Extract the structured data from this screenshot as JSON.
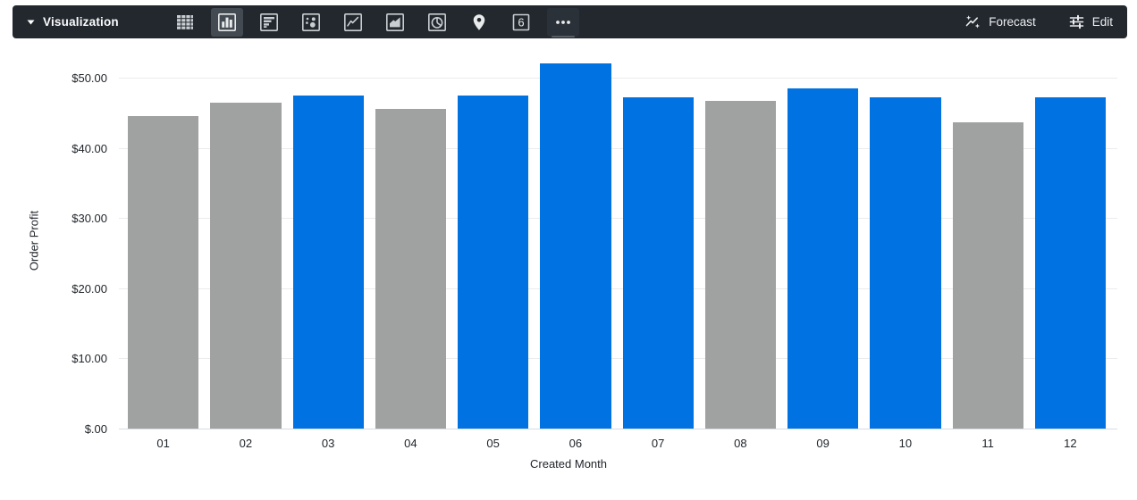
{
  "toolbar": {
    "title": "Visualization",
    "vis_types": [
      {
        "name": "table",
        "selected": false
      },
      {
        "name": "column",
        "selected": true
      },
      {
        "name": "bar",
        "selected": false
      },
      {
        "name": "scatter",
        "selected": false
      },
      {
        "name": "line",
        "selected": false
      },
      {
        "name": "area",
        "selected": false
      },
      {
        "name": "pie",
        "selected": false
      },
      {
        "name": "map",
        "selected": false
      },
      {
        "name": "single-value",
        "selected": false,
        "label": "6"
      },
      {
        "name": "more",
        "selected": false
      }
    ],
    "forecast_label": "Forecast",
    "edit_label": "Edit"
  },
  "chart_data": {
    "type": "bar",
    "xlabel": "Created Month",
    "ylabel": "Order Profit",
    "categories": [
      "01",
      "02",
      "03",
      "04",
      "05",
      "06",
      "07",
      "08",
      "09",
      "10",
      "11",
      "12"
    ],
    "values": [
      44.5,
      46.5,
      47.5,
      45.5,
      47.5,
      52.0,
      47.25,
      46.7,
      48.5,
      47.25,
      43.6,
      47.25
    ],
    "bar_colors": [
      "gray",
      "gray",
      "blue",
      "gray",
      "blue",
      "blue",
      "blue",
      "gray",
      "blue",
      "blue",
      "gray",
      "blue"
    ],
    "colors": {
      "blue": "#0072e2",
      "gray": "#a0a1a1"
    },
    "y_ticks": [
      {
        "label": "$50.00",
        "value": 50
      },
      {
        "label": "$40.00",
        "value": 40
      },
      {
        "label": "$30.00",
        "value": 30
      },
      {
        "label": "$20.00",
        "value": 20
      },
      {
        "label": "$10.00",
        "value": 10
      },
      {
        "label": "$.00",
        "value": 0
      }
    ],
    "ylim": [
      0,
      52
    ],
    "grid": true,
    "legend": "none"
  }
}
